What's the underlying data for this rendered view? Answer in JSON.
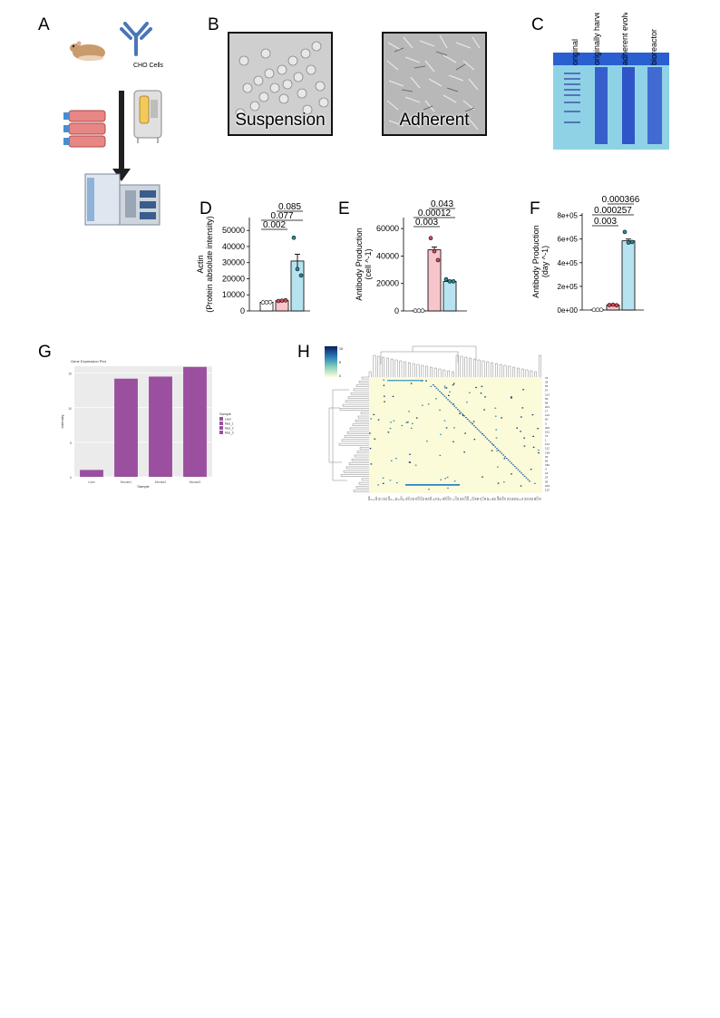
{
  "panels": {
    "A": {
      "letter": "A",
      "cells_label": "CHO Cells"
    },
    "B": {
      "letter": "B",
      "images": [
        "Suspension",
        "Adherent"
      ]
    },
    "C": {
      "letter": "C",
      "lanes": [
        "original",
        "originally harvested",
        "adherent evolved",
        "bioreactor"
      ]
    },
    "D": {
      "letter": "D"
    },
    "E": {
      "letter": "E"
    },
    "F": {
      "letter": "F"
    },
    "G": {
      "letter": "G"
    },
    "H": {
      "letter": "H"
    }
  },
  "colors": {
    "group1": "#ffffff",
    "group2": "#f7c5cb",
    "group3": "#b7e3f1",
    "purple": "#9b4f9f",
    "heat_bg": "#fbfbd9"
  },
  "chart_data": [
    {
      "id": "D",
      "type": "bar",
      "ylabel": "Actin (Protein absolute intensity)",
      "yticks": [
        "0",
        "10000",
        "20000",
        "30000",
        "40000",
        "50000"
      ],
      "ylim": [
        0,
        58000
      ],
      "values": [
        5400,
        6400,
        31000
      ],
      "errors": [
        300,
        300,
        4200
      ],
      "points": [
        [
          5300,
          5400,
          5500
        ],
        [
          6200,
          6400,
          6600
        ],
        [
          45500,
          26000,
          22000
        ]
      ],
      "pvalues": [
        "0.002",
        "0.077",
        "0.085"
      ]
    },
    {
      "id": "E",
      "type": "bar",
      "ylabel": "Antibody Production (cell ^-1)",
      "yticks": [
        "0",
        "20000",
        "40000",
        "60000"
      ],
      "ylim": [
        0,
        68000
      ],
      "values": [
        200,
        44500,
        21500
      ],
      "errors": [
        100,
        2000,
        600
      ],
      "points": [
        [
          200,
          200,
          200
        ],
        [
          53000,
          43500,
          37000
        ],
        [
          23000,
          21500,
          21500
        ]
      ],
      "pvalues": [
        "0.003",
        "0.00012",
        "0.043"
      ]
    },
    {
      "id": "F",
      "type": "bar",
      "ylabel": "Antibody Production (day ^-1)",
      "yticks": [
        "0e+00",
        "2e+05",
        "4e+05",
        "6e+05",
        "8e+05"
      ],
      "ylim": [
        0,
        820000
      ],
      "values": [
        2000,
        42000,
        585000
      ],
      "errors": [
        1000,
        5000,
        15000
      ],
      "points": [
        [
          2000,
          2000,
          2000
        ],
        [
          42000,
          45000,
          40000
        ],
        [
          660000,
          570000,
          575000
        ]
      ],
      "pvalues": [
        "0.003",
        "0.000257",
        "0.000366"
      ]
    },
    {
      "id": "G",
      "type": "bar",
      "title": "Gene Expression Plot",
      "xlabel": "Sample",
      "ylabel": "Intensity",
      "categories": [
        "Liver",
        "Mouse1",
        "Mouse2",
        "Mouse3"
      ],
      "yticks": [
        "0",
        "5",
        "10",
        "15"
      ],
      "ylim": [
        0,
        16
      ],
      "values": [
        1.0,
        14.2,
        14.5,
        15.9
      ],
      "legend_title": "Sample",
      "legend": [
        "Liver",
        "Mus_1",
        "Mus_2",
        "Mus_3"
      ]
    },
    {
      "id": "H",
      "type": "heatmap",
      "colorbar_ticks": [
        "10",
        "5",
        "0"
      ],
      "row_labels": [
        "76",
        "28",
        "55",
        "57",
        "213",
        "59",
        "85",
        "201",
        "17",
        "124",
        "60",
        "3",
        "200",
        "161",
        "72",
        "1",
        "101",
        "112",
        "128",
        "29",
        "96",
        "182",
        "4",
        "16",
        "23",
        "55",
        "209",
        "113"
      ],
      "col_labels": [
        "426",
        "8",
        "4",
        "201",
        "10",
        "71",
        "63",
        "41",
        "166",
        "9",
        "1",
        "55",
        "8",
        "203",
        "9",
        "31",
        "201",
        "51",
        "19",
        "79",
        "163",
        "101",
        "51",
        "56",
        "16",
        "201",
        "9",
        "33",
        "64",
        "5",
        "38",
        "201",
        "160",
        "71",
        "2",
        "213",
        "33",
        "81",
        "55",
        "210",
        "100",
        "1",
        "101",
        "36",
        "59",
        "27",
        "171",
        "36",
        "80",
        "5",
        "86",
        "47",
        "199",
        "98",
        "104",
        "74",
        "51",
        "16",
        "96",
        "51",
        "65",
        "9",
        "31",
        "10",
        "55",
        "28",
        "51",
        "99",
        "102",
        "39"
      ]
    }
  ]
}
